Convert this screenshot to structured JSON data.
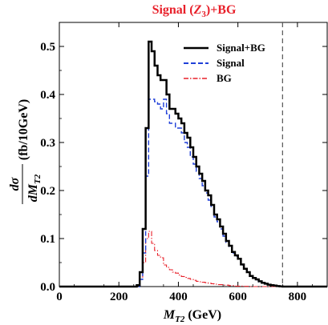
{
  "chart_data": {
    "type": "line",
    "title_main": "Signal (",
    "title_z": "Z",
    "title_sub": "3",
    "title_rest": ")+BG",
    "xlabel_main": "M",
    "xlabel_sub": "T2",
    "xlabel_rest": " (GeV)",
    "ylabel_num": "dσ",
    "ylabel_den": "dM",
    "ylabel_den_sub": "T2",
    "ylabel_unit": "(fb/10GeV)",
    "xlim": [
      0,
      900
    ],
    "ylim": [
      0,
      0.55
    ],
    "xticks": [
      "0",
      "200",
      "400",
      "600",
      "800"
    ],
    "yticks": [
      "0.0",
      "0.1",
      "0.2",
      "0.3",
      "0.4",
      "0.5"
    ],
    "vline_x": 750,
    "legend_position": "top-right",
    "series": [
      {
        "name": "Signal+BG",
        "color": "#000000",
        "style": "solid",
        "x": [
          0,
          250,
          260,
          270,
          280,
          290,
          300,
          310,
          320,
          330,
          340,
          350,
          360,
          370,
          380,
          390,
          400,
          410,
          420,
          430,
          440,
          450,
          460,
          470,
          480,
          490,
          500,
          510,
          520,
          530,
          540,
          550,
          560,
          570,
          580,
          590,
          600,
          610,
          620,
          630,
          640,
          650,
          660,
          670,
          680,
          690,
          700,
          710,
          720,
          730,
          740,
          750,
          900
        ],
        "y": [
          0.0,
          0.0,
          0.003,
          0.03,
          0.12,
          0.33,
          0.51,
          0.49,
          0.46,
          0.44,
          0.43,
          0.43,
          0.4,
          0.37,
          0.37,
          0.36,
          0.35,
          0.34,
          0.32,
          0.31,
          0.29,
          0.27,
          0.25,
          0.235,
          0.22,
          0.2,
          0.19,
          0.17,
          0.15,
          0.14,
          0.125,
          0.11,
          0.095,
          0.085,
          0.072,
          0.065,
          0.058,
          0.046,
          0.037,
          0.03,
          0.022,
          0.018,
          0.015,
          0.011,
          0.008,
          0.006,
          0.004,
          0.003,
          0.002,
          0.001,
          0.0005,
          0.0,
          0.0
        ]
      },
      {
        "name": "Signal",
        "color": "#1f3fd8",
        "style": "dashed",
        "x": [
          0,
          250,
          260,
          270,
          280,
          290,
          300,
          310,
          320,
          330,
          340,
          350,
          360,
          370,
          380,
          390,
          400,
          410,
          420,
          430,
          440,
          450,
          460,
          470,
          480,
          490,
          500,
          510,
          520,
          530,
          540,
          550,
          560,
          570,
          580,
          590,
          600,
          610,
          620,
          630,
          640,
          650,
          660,
          670,
          680,
          690,
          700,
          710,
          720,
          730,
          740,
          750,
          900
        ],
        "y": [
          0.0,
          0.0,
          0.0,
          0.015,
          0.07,
          0.23,
          0.39,
          0.39,
          0.385,
          0.38,
          0.37,
          0.39,
          0.36,
          0.34,
          0.34,
          0.33,
          0.33,
          0.32,
          0.3,
          0.29,
          0.27,
          0.255,
          0.24,
          0.225,
          0.21,
          0.195,
          0.18,
          0.165,
          0.145,
          0.135,
          0.12,
          0.105,
          0.092,
          0.082,
          0.07,
          0.063,
          0.056,
          0.045,
          0.036,
          0.029,
          0.021,
          0.017,
          0.014,
          0.01,
          0.008,
          0.006,
          0.004,
          0.003,
          0.002,
          0.001,
          0.0005,
          0.0,
          0.0
        ]
      },
      {
        "name": "BG",
        "color": "#e8202a",
        "style": "dashdot",
        "x": [
          0,
          250,
          260,
          270,
          280,
          290,
          300,
          310,
          320,
          330,
          340,
          350,
          360,
          370,
          380,
          390,
          400,
          410,
          420,
          430,
          440,
          450,
          460,
          470,
          480,
          490,
          500,
          510,
          520,
          530,
          540,
          550,
          560,
          570,
          580,
          590,
          600,
          610,
          620,
          630,
          640,
          650,
          900
        ],
        "y": [
          0.0,
          0.0,
          0.003,
          0.015,
          0.05,
          0.1,
          0.115,
          0.09,
          0.075,
          0.065,
          0.06,
          0.045,
          0.04,
          0.035,
          0.03,
          0.028,
          0.024,
          0.021,
          0.019,
          0.017,
          0.015,
          0.013,
          0.011,
          0.01,
          0.009,
          0.008,
          0.007,
          0.006,
          0.005,
          0.004,
          0.004,
          0.003,
          0.003,
          0.002,
          0.002,
          0.001,
          0.001,
          0.001,
          0.0005,
          0.0005,
          0.0,
          0.0,
          0.0
        ]
      }
    ]
  }
}
